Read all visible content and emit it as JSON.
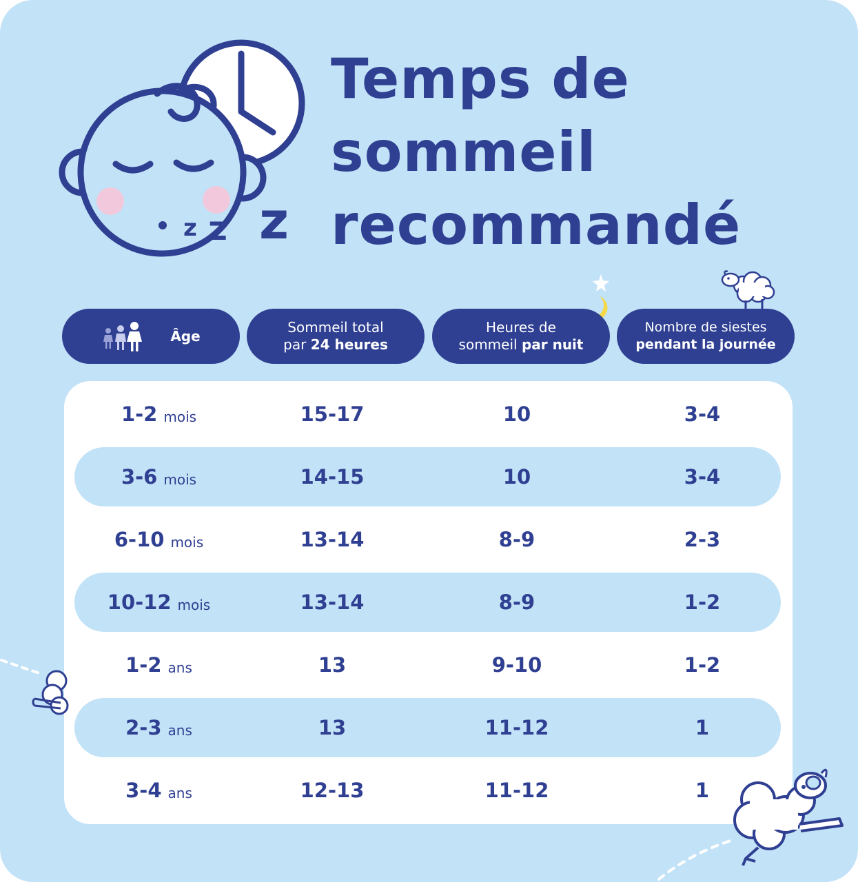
{
  "title": {
    "line1": "Temps de",
    "line2": "sommeil",
    "line3": "recommandé"
  },
  "headers": {
    "age": "Âge",
    "total_line1": "Sommeil total",
    "total_line2_prefix": "par",
    "total_line2_bold": "24 heures",
    "night_line1": "Heures de",
    "night_line2_prefix": "sommeil",
    "night_line2_bold": "par nuit",
    "naps_line1": "Nombre de siestes",
    "naps_line2_bold": "pendant la journée"
  },
  "rows": [
    {
      "age": "1-2",
      "unit": "mois",
      "total": "15-17",
      "night": "10",
      "naps": "3-4"
    },
    {
      "age": "3-6",
      "unit": "mois",
      "total": "14-15",
      "night": "10",
      "naps": "3-4"
    },
    {
      "age": "6-10",
      "unit": "mois",
      "total": "13-14",
      "night": "8-9",
      "naps": "2-3"
    },
    {
      "age": "10-12",
      "unit": "mois",
      "total": "13-14",
      "night": "8-9",
      "naps": "1-2"
    },
    {
      "age": "1-2",
      "unit": "ans",
      "total": "13",
      "night": "9-10",
      "naps": "1-2"
    },
    {
      "age": "2-3",
      "unit": "ans",
      "total": "13",
      "night": "11-12",
      "naps": "1"
    },
    {
      "age": "3-4",
      "unit": "ans",
      "total": "12-13",
      "night": "11-12",
      "naps": "1"
    }
  ],
  "icons": {
    "baby": "sleeping-baby-icon",
    "clock": "clock-icon",
    "people": "family-icon",
    "moon": "moon-stars-icon",
    "sheep": "sheep-icon"
  },
  "colors": {
    "background": "#c2e2f7",
    "primary": "#2f3f92",
    "panel": "#ffffff",
    "cheek": "#f2c9dc",
    "moon": "#f5d84a"
  }
}
